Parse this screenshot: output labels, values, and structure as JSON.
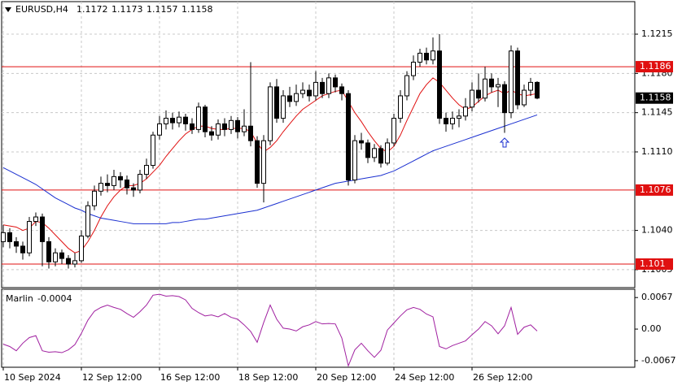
{
  "chart_data": {
    "type": "candlestick",
    "title": "EURUSD,H4",
    "categories": [
      "10 Sep 2024",
      null,
      null,
      null,
      null,
      null,
      null,
      null,
      null,
      null,
      null,
      null,
      "12 Sep 12:00",
      null,
      null,
      null,
      null,
      null,
      null,
      null,
      null,
      null,
      null,
      null,
      "16 Sep 12:00",
      null,
      null,
      null,
      null,
      null,
      null,
      null,
      null,
      null,
      null,
      null,
      "18 Sep 12:00",
      null,
      null,
      null,
      null,
      null,
      null,
      null,
      null,
      null,
      null,
      null,
      "20 Sep 12:00",
      null,
      null,
      null,
      null,
      null,
      null,
      null,
      null,
      null,
      null,
      null,
      "24 Sep 12:00",
      null,
      null,
      null,
      null,
      null,
      null,
      null,
      null,
      null,
      null,
      null,
      "26 Sep 12:00",
      null,
      null,
      null,
      null,
      null,
      null,
      null,
      null,
      null,
      null
    ],
    "open": [
      1.103,
      1.1038,
      1.103,
      1.1026,
      1.102,
      1.1048,
      1.1052,
      1.103,
      1.1012,
      1.102,
      1.1015,
      1.101,
      1.1013,
      1.1035,
      1.1062,
      1.1075,
      1.1082,
      1.108,
      1.1088,
      1.1085,
      1.1078,
      1.1076,
      1.109,
      1.1098,
      1.1125,
      1.1135,
      1.114,
      1.1136,
      1.1141,
      1.1135,
      1.113,
      1.115,
      1.1128,
      1.1125,
      1.1135,
      1.113,
      1.1138,
      1.1128,
      1.1133,
      1.112,
      1.1082,
      1.112,
      1.1168,
      1.114,
      1.116,
      1.1155,
      1.1162,
      1.1165,
      1.116,
      1.1172,
      1.1162,
      1.1176,
      1.1168,
      1.1162,
      1.1085,
      1.112,
      1.1118,
      1.1105,
      1.1113,
      1.11,
      1.1118,
      1.114,
      1.116,
      1.1178,
      1.119,
      1.1198,
      1.1192,
      1.12,
      1.114,
      1.1135,
      1.114,
      1.1142,
      1.115,
      1.1165,
      1.1158,
      1.1175,
      1.1168,
      1.117,
      1.1145,
      1.12,
      1.1152,
      1.1165,
      1.1172
    ],
    "high": [
      1.1045,
      1.1042,
      1.1034,
      1.103,
      1.1052,
      1.1056,
      1.1055,
      1.1034,
      1.1024,
      1.1023,
      1.1018,
      1.102,
      1.104,
      1.1066,
      1.108,
      1.1088,
      1.109,
      1.1094,
      1.1092,
      1.1089,
      1.1082,
      1.1094,
      1.1104,
      1.1128,
      1.1142,
      1.1147,
      1.1145,
      1.1146,
      1.1144,
      1.114,
      1.1154,
      1.1152,
      1.1133,
      1.1139,
      1.114,
      1.1142,
      1.1141,
      1.1148,
      1.119,
      1.1124,
      1.1125,
      1.1172,
      1.1175,
      1.1165,
      1.1168,
      1.117,
      1.1172,
      1.117,
      1.1182,
      1.1176,
      1.118,
      1.1179,
      1.1171,
      1.1165,
      1.1125,
      1.1127,
      1.1121,
      1.1117,
      1.1116,
      1.1122,
      1.1144,
      1.1165,
      1.1182,
      1.1196,
      1.1202,
      1.1203,
      1.1212,
      1.1215,
      1.1145,
      1.1146,
      1.1148,
      1.1158,
      1.1172,
      1.118,
      1.1186,
      1.118,
      1.1176,
      1.1173,
      1.1205,
      1.1203,
      1.117,
      1.1176,
      1.1173
    ],
    "low": [
      1.1025,
      1.1024,
      1.102,
      1.1014,
      1.1017,
      1.1044,
      1.1008,
      1.1006,
      1.1008,
      1.101,
      1.1006,
      1.1007,
      1.1011,
      1.1033,
      1.1058,
      1.1071,
      1.1074,
      1.1076,
      1.1078,
      1.1072,
      1.107,
      1.1073,
      1.1086,
      1.1095,
      1.1121,
      1.113,
      1.113,
      1.1132,
      1.1129,
      1.1126,
      1.1127,
      1.1123,
      1.112,
      1.1121,
      1.1124,
      1.1126,
      1.1122,
      1.1124,
      1.1115,
      1.1078,
      1.1065,
      1.1116,
      1.1136,
      1.1136,
      1.115,
      1.1151,
      1.1158,
      1.1155,
      1.1156,
      1.1158,
      1.1158,
      1.1163,
      1.1156,
      1.108,
      1.1082,
      1.1112,
      1.11,
      1.1101,
      1.1096,
      1.1098,
      1.1115,
      1.1136,
      1.1156,
      1.1174,
      1.1186,
      1.1188,
      1.1188,
      1.1135,
      1.1128,
      1.113,
      1.1132,
      1.1138,
      1.1146,
      1.1154,
      1.1155,
      1.1163,
      1.115,
      1.1127,
      1.114,
      1.1148,
      1.115,
      1.116,
      1.1157
    ],
    "close": [
      1.1038,
      1.103,
      1.1026,
      1.102,
      1.1048,
      1.1052,
      1.103,
      1.1012,
      1.102,
      1.1015,
      1.101,
      1.1013,
      1.1035,
      1.1062,
      1.1075,
      1.1082,
      1.108,
      1.1088,
      1.1085,
      1.1078,
      1.1076,
      1.109,
      1.1098,
      1.1125,
      1.1135,
      1.114,
      1.1136,
      1.1141,
      1.1135,
      1.113,
      1.115,
      1.1128,
      1.1125,
      1.1135,
      1.113,
      1.1138,
      1.1128,
      1.1133,
      1.112,
      1.1082,
      1.112,
      1.1168,
      1.114,
      1.116,
      1.1155,
      1.1162,
      1.1165,
      1.116,
      1.1172,
      1.1162,
      1.1176,
      1.1168,
      1.1162,
      1.1085,
      1.112,
      1.1118,
      1.1105,
      1.1113,
      1.11,
      1.1118,
      1.114,
      1.116,
      1.1178,
      1.119,
      1.1198,
      1.1192,
      1.12,
      1.114,
      1.1135,
      1.114,
      1.1142,
      1.115,
      1.1165,
      1.1158,
      1.1175,
      1.1168,
      1.117,
      1.1145,
      1.12,
      1.1152,
      1.1165,
      1.1172,
      1.1158
    ],
    "series": [
      {
        "color": "#e01010",
        "values": [
          1.1045,
          1.1044,
          1.1043,
          1.104,
          1.1042,
          1.1048,
          1.1047,
          1.1042,
          1.1036,
          1.103,
          1.1024,
          1.102,
          1.1022,
          1.103,
          1.104,
          1.1052,
          1.1062,
          1.107,
          1.1076,
          1.108,
          1.108,
          1.1082,
          1.1086,
          1.1092,
          1.1098,
          1.1106,
          1.1113,
          1.112,
          1.1126,
          1.113,
          1.1133,
          1.1133,
          1.1131,
          1.113,
          1.113,
          1.1131,
          1.1131,
          1.1131,
          1.1128,
          1.1118,
          1.111,
          1.1114,
          1.112,
          1.1128,
          1.1135,
          1.1142,
          1.1148,
          1.1152,
          1.1156,
          1.116,
          1.1162,
          1.1164,
          1.1165,
          1.1155,
          1.1145,
          1.1137,
          1.1128,
          1.112,
          1.1113,
          1.111,
          1.1115,
          1.1125,
          1.1138,
          1.115,
          1.1162,
          1.117,
          1.1176,
          1.1172,
          1.1165,
          1.1158,
          1.1152,
          1.1148,
          1.115,
          1.1155,
          1.116,
          1.1163,
          1.1165,
          1.1162,
          1.1165,
          1.1162,
          1.116,
          1.1161,
          1.1162
        ]
      },
      {
        "color": "#1a2fd0",
        "values": [
          1.1096,
          1.1093,
          1.109,
          1.1087,
          1.1084,
          1.1081,
          1.1077,
          1.1073,
          1.1069,
          1.1066,
          1.1063,
          1.106,
          1.1058,
          1.1055,
          1.1053,
          1.1051,
          1.105,
          1.1049,
          1.1048,
          1.1047,
          1.1046,
          1.1046,
          1.1046,
          1.1046,
          1.1046,
          1.1046,
          1.1047,
          1.1047,
          1.1048,
          1.1049,
          1.105,
          1.105,
          1.1051,
          1.1052,
          1.1053,
          1.1054,
          1.1055,
          1.1056,
          1.1057,
          1.1058,
          1.106,
          1.1062,
          1.1064,
          1.1066,
          1.1068,
          1.107,
          1.1072,
          1.1074,
          1.1076,
          1.1078,
          1.108,
          1.1082,
          1.1083,
          1.1084,
          1.1085,
          1.1086,
          1.1087,
          1.1088,
          1.1089,
          1.1091,
          1.1093,
          1.1096,
          1.1099,
          1.1102,
          1.1105,
          1.1108,
          1.1111,
          1.1113,
          1.1115,
          1.1117,
          1.1119,
          1.1121,
          1.1123,
          1.1125,
          1.1127,
          1.1129,
          1.1131,
          1.1133,
          1.1135,
          1.1137,
          1.1139,
          1.1141,
          1.1143
        ]
      }
    ],
    "levels": [
      1.1186,
      1.1076,
      1.101
    ],
    "level_color": "#e01010",
    "ylim": [
      1.0989,
      1.1244
    ],
    "yticks": [
      1.1215,
      {
        "value": 1.118,
        "label": "1.1180"
      },
      1.1145,
      {
        "value": 1.111,
        "label": "1.1110"
      },
      {
        "value": 1.104,
        "label": "1.1040"
      },
      1.1005
    ],
    "grid": true,
    "indicator": {
      "name": "Marlin",
      "color": "#a020a0",
      "values": [
        -0.0032,
        -0.0037,
        -0.0046,
        -0.003,
        -0.0018,
        -0.0014,
        -0.0046,
        -0.0049,
        -0.0048,
        -0.005,
        -0.0044,
        -0.0033,
        -0.0009,
        0.0019,
        0.0038,
        0.0046,
        0.0051,
        0.0046,
        0.0042,
        0.0033,
        0.0025,
        0.0037,
        0.0051,
        0.0072,
        0.0074,
        0.007,
        0.0071,
        0.0069,
        0.0062,
        0.0044,
        0.0035,
        0.0028,
        0.003,
        0.0026,
        0.0033,
        0.0025,
        0.0021,
        0.0009,
        -0.0005,
        -0.0028,
        0.0014,
        0.0051,
        0.0021,
        0.0002,
        0.0,
        -0.0004,
        0.0005,
        0.0009,
        0.0016,
        0.0011,
        0.0012,
        0.0011,
        -0.0019,
        -0.0078,
        -0.0044,
        -0.003,
        -0.0046,
        -0.006,
        -0.0045,
        -0.0002,
        0.0013,
        0.0028,
        0.0041,
        0.0046,
        0.0042,
        0.0032,
        0.0026,
        -0.0037,
        -0.0042,
        -0.0035,
        -0.003,
        -0.0025,
        -0.0012,
        0.0,
        0.0016,
        0.0007,
        -0.001,
        0.0007,
        0.0046,
        -0.0011,
        0.0004,
        0.0009,
        -0.0004
      ],
      "ylim": [
        -0.0081,
        0.00846
      ],
      "yticks": [
        0.0067,
        {
          "value": 0,
          "label": "0.00"
        },
        -0.0067
      ]
    }
  }
}
